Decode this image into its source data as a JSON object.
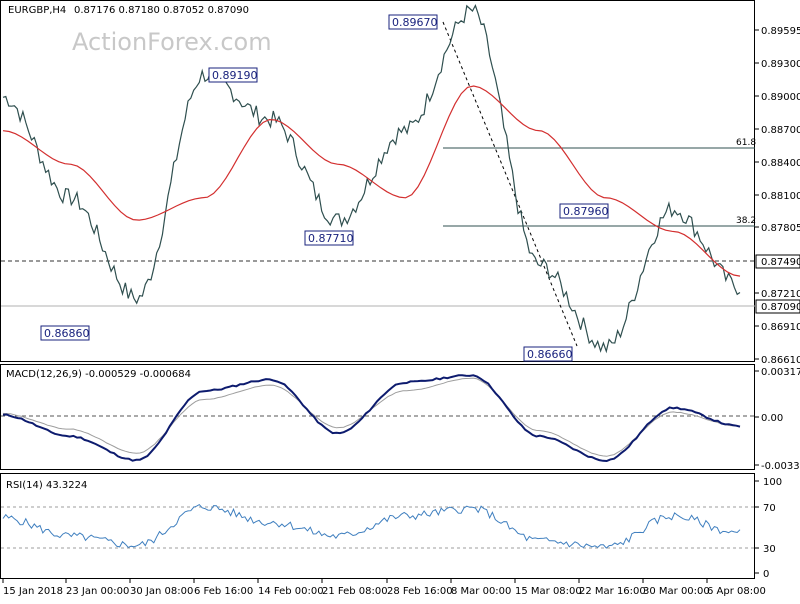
{
  "header": {
    "symbol": "EURGBP,H4",
    "ohlc": "0.87176 0.87180 0.87052 0.87090"
  },
  "watermark": "ActionForex.com",
  "colors": {
    "price": "#2f4f4f",
    "ma": "#d32f2f",
    "macd": "#0d1b6e",
    "signal": "#9e9e9e",
    "rsi": "#3f7fbf",
    "label_border": "#1a237e"
  },
  "price_panel": {
    "ylim": [
      0.8655,
      0.8975
    ],
    "y_ticks": [
      "0.89595",
      "0.89300",
      "0.89000",
      "0.88700",
      "0.88400",
      "0.88100",
      "0.87805",
      "0.87210",
      "0.86910",
      "0.86610"
    ],
    "highlight_labels": [
      "0.87490",
      "0.87090"
    ],
    "swing_labels": [
      "0.89670",
      "0.89190",
      "0.87710",
      "0.86860",
      "0.87960",
      "0.86660"
    ],
    "fib_labels": [
      "61.8",
      "38.2"
    ]
  },
  "macd_panel": {
    "title": "MACD(12,26,9) -0.000529 -0.000684",
    "y_ticks": [
      "0.003177",
      "0.00",
      "-0.00334"
    ]
  },
  "rsi_panel": {
    "title": "RSI(14) 43.3224",
    "y_ticks": [
      "100",
      "70",
      "30",
      "0"
    ]
  },
  "x_ticks": [
    "15 Jan 2018",
    "23 Jan 00:00",
    "30 Jan 08:00",
    "6 Feb 16:00",
    "14 Feb 00:00",
    "21 Feb 08:00",
    "28 Feb 16:00",
    "8 Mar 00:00",
    "15 Mar 08:00",
    "22 Mar 16:00",
    "30 Mar 00:00",
    "6 Apr 08:00"
  ],
  "chart_data": [
    {
      "type": "line",
      "title": "EURGBP,H4",
      "ylim": [
        0.8655,
        0.8975
      ],
      "x": [
        "15 Jan 2018",
        "23 Jan 00:00",
        "30 Jan 08:00",
        "6 Feb 16:00",
        "14 Feb 00:00",
        "21 Feb 08:00",
        "28 Feb 16:00",
        "8 Mar 00:00",
        "15 Mar 08:00",
        "22 Mar 16:00",
        "30 Mar 00:00",
        "6 Apr 08:00"
      ],
      "series": [
        {
          "values": [
            0.889,
            0.88,
            0.871,
            0.891,
            0.887,
            0.878,
            0.886,
            0.8967,
            0.874,
            0.8666,
            0.879,
            0.872
          ]
        },
        {
          "values": [
            0.886,
            0.883,
            0.878,
            0.88,
            0.887,
            0.883,
            0.88,
            0.89,
            0.886,
            0.88,
            0.877,
            0.873
          ]
        }
      ],
      "levels": [
        {
          "label": "61.8",
          "value": 0.885
        },
        {
          "label": "38.2",
          "value": 0.8782
        },
        {
          "value": 0.8749
        },
        {
          "value": 0.8709
        }
      ]
    },
    {
      "type": "line",
      "title": "MACD(12,26,9) -0.000529 -0.000684",
      "x": [
        "15 Jan 2018",
        "23 Jan 00:00",
        "30 Jan 08:00",
        "6 Feb 16:00",
        "14 Feb 00:00",
        "21 Feb 08:00",
        "28 Feb 16:00",
        "8 Mar 00:00",
        "15 Mar 08:00",
        "22 Mar 16:00",
        "30 Mar 00:00",
        "6 Apr 08:00"
      ],
      "series": [
        {
          "values": [
            0.0001,
            -0.0014,
            -0.0031,
            0.0018,
            0.0026,
            -0.0012,
            0.0024,
            0.0029,
            -0.0014,
            -0.0031,
            0.0006,
            -0.0007
          ]
        },
        {
          "values": [
            0.0002,
            -0.0009,
            -0.0026,
            0.0012,
            0.0022,
            -0.0008,
            0.0018,
            0.0027,
            -0.001,
            -0.0028,
            0.0003,
            -0.0007
          ]
        }
      ],
      "ylim": [
        -0.0035,
        0.0032
      ]
    },
    {
      "type": "line",
      "title": "RSI(14) 43.3224",
      "x": [
        "15 Jan 2018",
        "23 Jan 00:00",
        "30 Jan 08:00",
        "6 Feb 16:00",
        "14 Feb 00:00",
        "21 Feb 08:00",
        "28 Feb 16:00",
        "8 Mar 00:00",
        "15 Mar 08:00",
        "22 Mar 16:00",
        "30 Mar 00:00",
        "6 Apr 08:00"
      ],
      "series": [
        {
          "values": [
            60,
            40,
            30,
            72,
            55,
            40,
            62,
            70,
            35,
            28,
            62,
            43
          ]
        }
      ],
      "ylim": [
        0,
        100
      ]
    }
  ]
}
